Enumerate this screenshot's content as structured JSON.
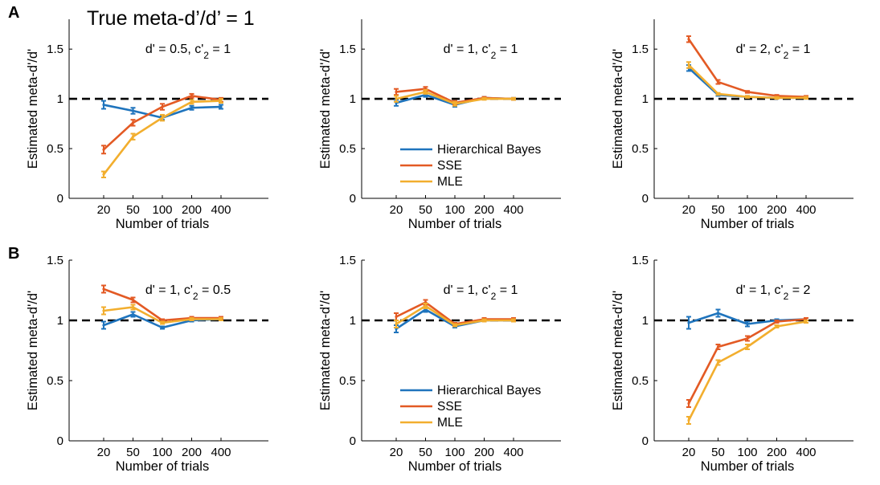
{
  "figure": {
    "title": "True meta-d’/d’ = 1",
    "row_labels": [
      "A",
      "B"
    ]
  },
  "colors": {
    "Hierarchical Bayes": "#1f74bd",
    "SSE": "#e35a24",
    "MLE": "#f2ae2e",
    "reference_line": "#000000"
  },
  "chart_data": [
    {
      "type": "line",
      "row": "A",
      "annotation": "d' = 0.5, c'2 = 1",
      "xlabel": "Number of trials",
      "ylabel": "Estimated meta-d'/d'",
      "categories": [
        "20",
        "50",
        "100",
        "200",
        "400"
      ],
      "ylim": [
        0,
        1.8
      ],
      "yticks": [
        "0",
        "0.5",
        "1",
        "1.5"
      ],
      "reference_y": 1,
      "series": [
        {
          "name": "Hierarchical Bayes",
          "values": [
            0.94,
            0.88,
            0.81,
            0.91,
            0.92
          ],
          "err": [
            0.04,
            0.03,
            0.02,
            0.02,
            0.02
          ]
        },
        {
          "name": "SSE",
          "values": [
            0.49,
            0.76,
            0.92,
            1.03,
            0.99
          ],
          "err": [
            0.04,
            0.03,
            0.03,
            0.02,
            0.02
          ]
        },
        {
          "name": "MLE",
          "values": [
            0.24,
            0.62,
            0.81,
            0.97,
            0.98
          ],
          "err": [
            0.03,
            0.03,
            0.03,
            0.02,
            0.02
          ]
        }
      ]
    },
    {
      "type": "line",
      "row": "A",
      "annotation": "d' = 1, c'2 = 1",
      "xlabel": "Number of trials",
      "ylabel": "Estimated meta-d'/d'",
      "categories": [
        "20",
        "50",
        "100",
        "200",
        "400"
      ],
      "ylim": [
        0,
        1.8
      ],
      "yticks": [
        "0",
        "0.5",
        "1",
        "1.5"
      ],
      "reference_y": 1,
      "series": [
        {
          "name": "Hierarchical Bayes",
          "values": [
            0.96,
            1.04,
            0.94,
            1.01,
            1.0
          ],
          "err": [
            0.03,
            0.02,
            0.02,
            0.01,
            0.01
          ]
        },
        {
          "name": "SSE",
          "values": [
            1.07,
            1.1,
            0.96,
            1.01,
            1.0
          ],
          "err": [
            0.03,
            0.02,
            0.02,
            0.01,
            0.01
          ]
        },
        {
          "name": "MLE",
          "values": [
            1.0,
            1.07,
            0.95,
            1.0,
            1.0
          ],
          "err": [
            0.03,
            0.02,
            0.02,
            0.01,
            0.01
          ]
        }
      ],
      "legend": {
        "entries": [
          "Hierarchical Bayes",
          "SSE",
          "MLE"
        ],
        "position": "bottom-right"
      }
    },
    {
      "type": "line",
      "row": "A",
      "annotation": "d' = 2, c'2 = 1",
      "xlabel": "Number of trials",
      "ylabel": "Estimated meta-d'/d'",
      "categories": [
        "20",
        "50",
        "100",
        "200",
        "400"
      ],
      "ylim": [
        0,
        1.8
      ],
      "yticks": [
        "0",
        "0.5",
        "1",
        "1.5"
      ],
      "reference_y": 1,
      "series": [
        {
          "name": "Hierarchical Bayes",
          "values": [
            1.31,
            1.04,
            1.02,
            1.01,
            1.01
          ],
          "err": [
            0.03,
            0.01,
            0.01,
            0.01,
            0.01
          ]
        },
        {
          "name": "SSE",
          "values": [
            1.6,
            1.17,
            1.07,
            1.03,
            1.02
          ],
          "err": [
            0.03,
            0.02,
            0.01,
            0.01,
            0.01
          ]
        },
        {
          "name": "MLE",
          "values": [
            1.34,
            1.05,
            1.02,
            1.01,
            1.01
          ],
          "err": [
            0.03,
            0.01,
            0.01,
            0.01,
            0.01
          ]
        }
      ]
    },
    {
      "type": "line",
      "row": "B",
      "annotation": "d' = 1, c'2 = 0.5",
      "xlabel": "Number of trials",
      "ylabel": "Estimated meta-d'/d'",
      "categories": [
        "20",
        "50",
        "100",
        "200",
        "400"
      ],
      "ylim": [
        0,
        1.5
      ],
      "yticks": [
        "0",
        "0.5",
        "1",
        "1.5"
      ],
      "reference_y": 1,
      "series": [
        {
          "name": "Hierarchical Bayes",
          "values": [
            0.96,
            1.05,
            0.94,
            1.0,
            1.01
          ],
          "err": [
            0.03,
            0.02,
            0.01,
            0.01,
            0.01
          ]
        },
        {
          "name": "SSE",
          "values": [
            1.26,
            1.17,
            1.0,
            1.02,
            1.02
          ],
          "err": [
            0.03,
            0.02,
            0.01,
            0.01,
            0.01
          ]
        },
        {
          "name": "MLE",
          "values": [
            1.08,
            1.11,
            0.98,
            1.01,
            1.01
          ],
          "err": [
            0.03,
            0.02,
            0.01,
            0.01,
            0.01
          ]
        }
      ]
    },
    {
      "type": "line",
      "row": "B",
      "annotation": "d' = 1, c'2 = 1",
      "xlabel": "Number of trials",
      "ylabel": "Estimated meta-d'/d'",
      "categories": [
        "20",
        "50",
        "100",
        "200",
        "400"
      ],
      "ylim": [
        0,
        1.5
      ],
      "yticks": [
        "0",
        "0.5",
        "1",
        "1.5"
      ],
      "reference_y": 1,
      "series": [
        {
          "name": "Hierarchical Bayes",
          "values": [
            0.93,
            1.09,
            0.95,
            1.0,
            1.0
          ],
          "err": [
            0.03,
            0.02,
            0.01,
            0.01,
            0.01
          ]
        },
        {
          "name": "SSE",
          "values": [
            1.03,
            1.15,
            0.97,
            1.01,
            1.01
          ],
          "err": [
            0.03,
            0.02,
            0.01,
            0.01,
            0.01
          ]
        },
        {
          "name": "MLE",
          "values": [
            0.97,
            1.12,
            0.96,
            1.0,
            1.0
          ],
          "err": [
            0.03,
            0.02,
            0.01,
            0.01,
            0.01
          ]
        }
      ],
      "legend": {
        "entries": [
          "Hierarchical Bayes",
          "SSE",
          "MLE"
        ],
        "position": "bottom-right"
      }
    },
    {
      "type": "line",
      "row": "B",
      "annotation": "d' = 1, c'2 = 2",
      "xlabel": "Number of trials",
      "ylabel": "Estimated meta-d'/d'",
      "categories": [
        "20",
        "50",
        "100",
        "200",
        "400"
      ],
      "ylim": [
        0,
        1.5
      ],
      "yticks": [
        "0",
        "0.5",
        "1",
        "1.5"
      ],
      "reference_y": 1,
      "series": [
        {
          "name": "Hierarchical Bayes",
          "values": [
            0.98,
            1.06,
            0.97,
            1.0,
            1.01
          ],
          "err": [
            0.05,
            0.03,
            0.02,
            0.01,
            0.01
          ]
        },
        {
          "name": "SSE",
          "values": [
            0.31,
            0.78,
            0.85,
            0.99,
            1.01
          ],
          "err": [
            0.03,
            0.02,
            0.02,
            0.01,
            0.01
          ]
        },
        {
          "name": "MLE",
          "values": [
            0.17,
            0.65,
            0.78,
            0.95,
            0.99
          ],
          "err": [
            0.03,
            0.02,
            0.02,
            0.01,
            0.01
          ]
        }
      ]
    }
  ]
}
